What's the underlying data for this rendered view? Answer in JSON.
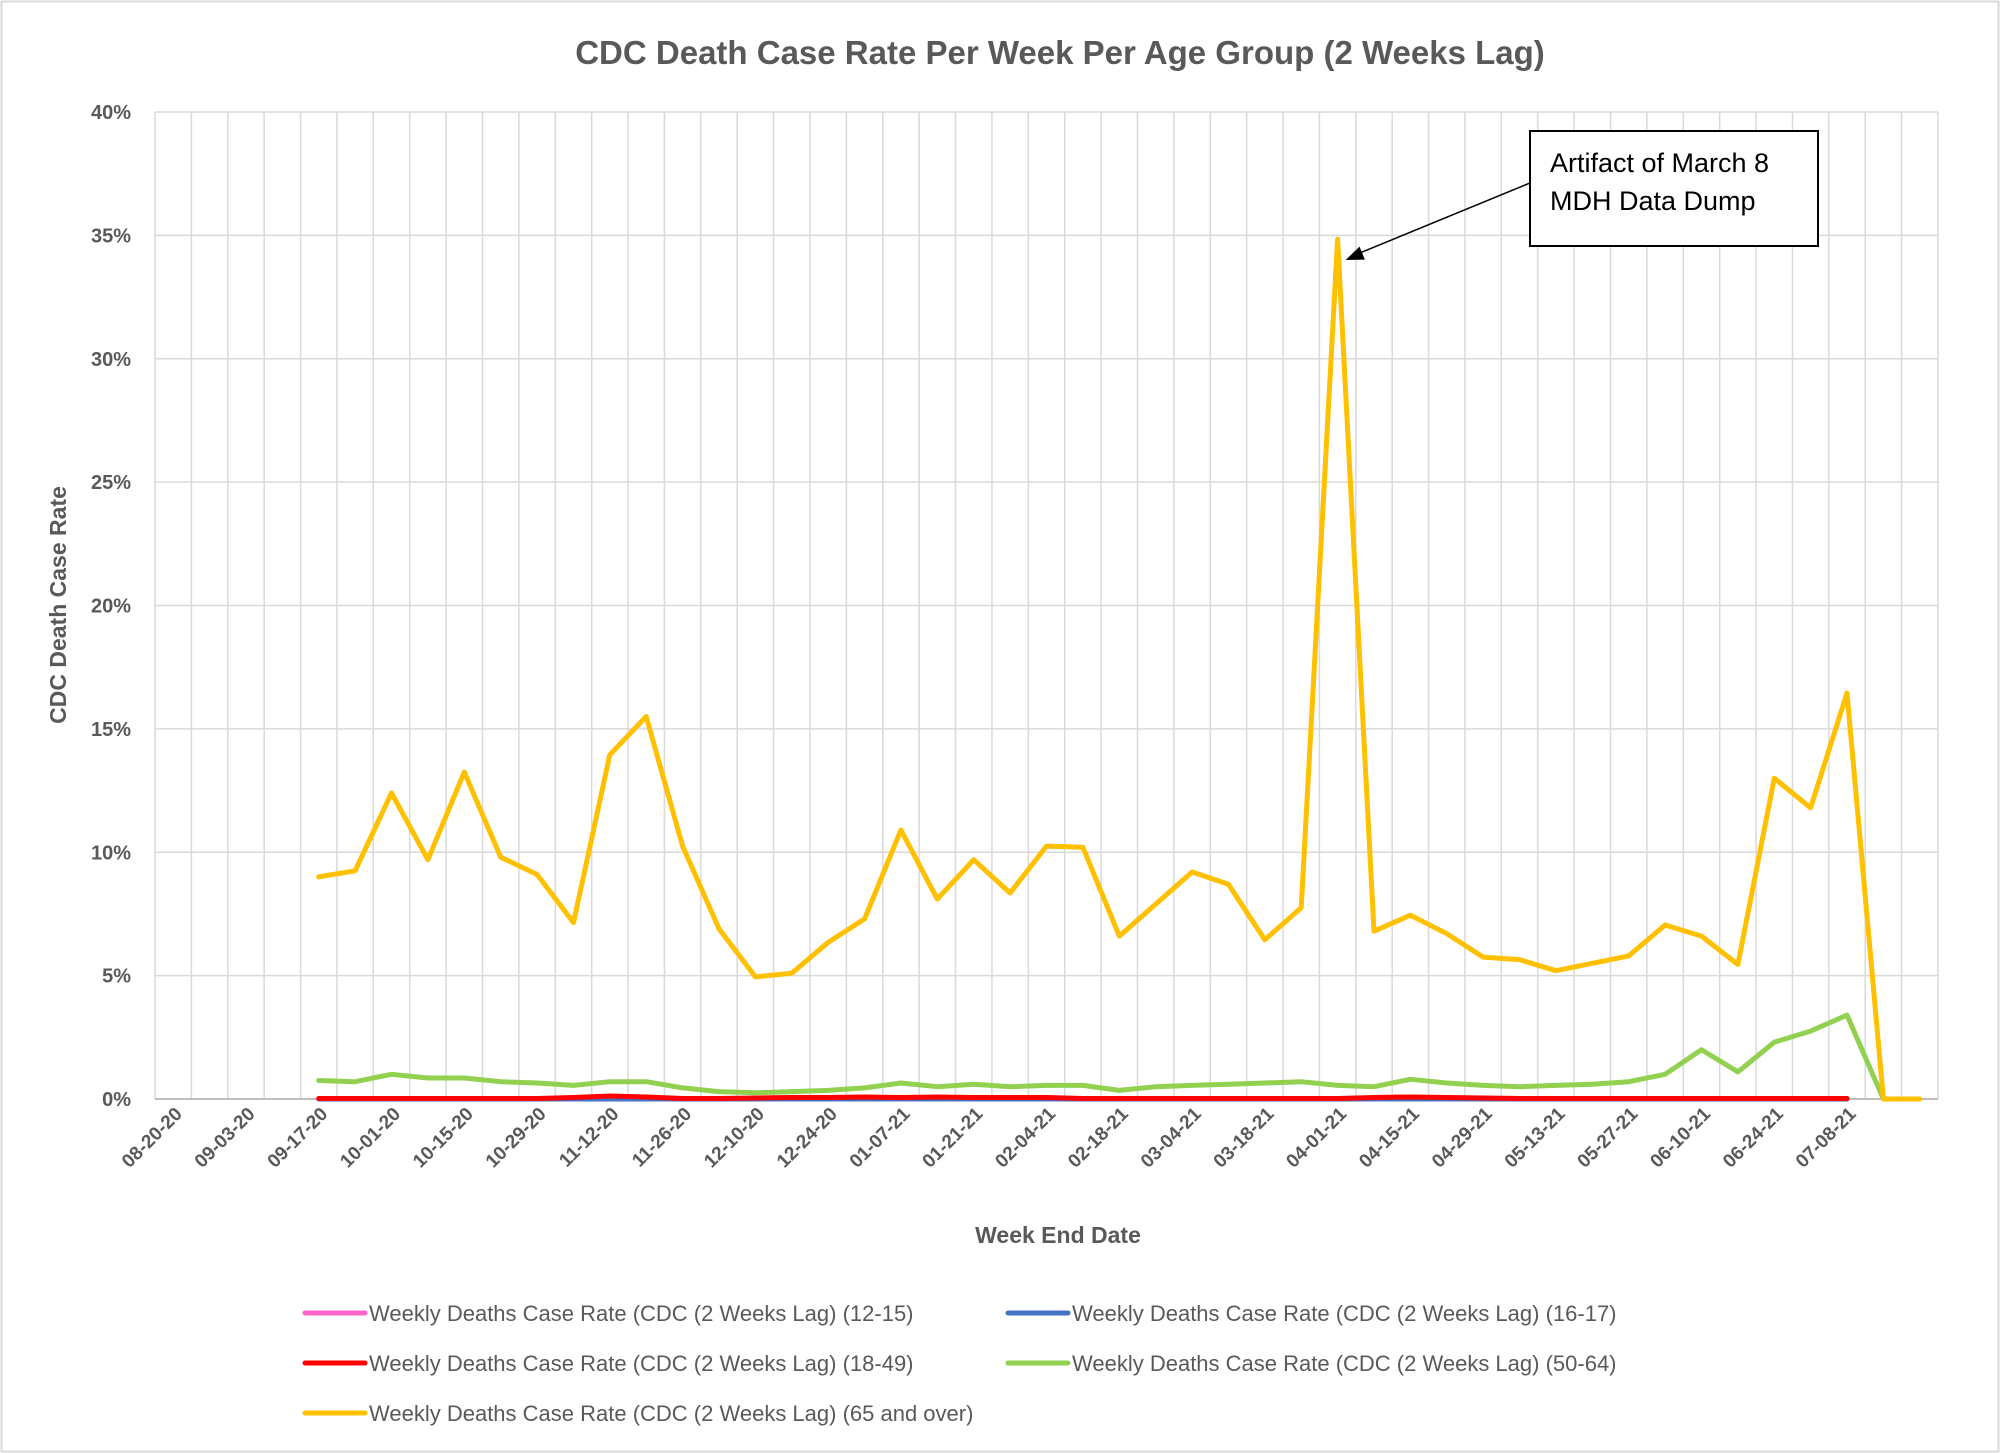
{
  "chart_data": {
    "type": "line",
    "title": "CDC Death Case Rate Per Week Per Age Group (2 Weeks Lag)",
    "xlabel": "Week End Date",
    "ylabel": "CDC Death Case Rate",
    "ylim": [
      0,
      40
    ],
    "y_ticks": [
      "0%",
      "5%",
      "10%",
      "15%",
      "20%",
      "25%",
      "30%",
      "35%",
      "40%"
    ],
    "x_tick_labels": [
      "08-20-20",
      "09-03-20",
      "09-17-20",
      "10-01-20",
      "10-15-20",
      "10-29-20",
      "11-12-20",
      "11-26-20",
      "12-10-20",
      "12-24-20",
      "01-07-21",
      "01-21-21",
      "02-04-21",
      "02-18-21",
      "03-04-21",
      "03-18-21",
      "04-01-21",
      "04-15-21",
      "04-29-21",
      "05-13-21",
      "05-27-21",
      "06-10-21",
      "06-24-21",
      "07-08-21"
    ],
    "x": [
      "08-20-20",
      "08-27-20",
      "09-03-20",
      "09-10-20",
      "09-17-20",
      "09-24-20",
      "10-01-20",
      "10-08-20",
      "10-15-20",
      "10-22-20",
      "10-29-20",
      "11-05-20",
      "11-12-20",
      "11-19-20",
      "11-26-20",
      "12-03-20",
      "12-10-20",
      "12-17-20",
      "12-24-20",
      "12-31-20",
      "01-07-21",
      "01-14-21",
      "01-21-21",
      "01-28-21",
      "02-04-21",
      "02-11-21",
      "02-18-21",
      "02-25-21",
      "03-04-21",
      "03-11-21",
      "03-18-21",
      "03-25-21",
      "04-01-21",
      "04-08-21",
      "04-15-21",
      "04-22-21",
      "04-29-21",
      "05-06-21",
      "05-13-21",
      "05-20-21",
      "05-27-21",
      "06-03-21",
      "06-10-21",
      "06-17-21",
      "06-24-21",
      "07-01-21",
      "07-08-21",
      "07-15-21"
    ],
    "grid": true,
    "legend_position": "bottom",
    "series": [
      {
        "name": "Weekly Deaths Case Rate (CDC (2 Weeks Lag) (12-15)",
        "color": "#ff66cc",
        "values": [
          null,
          null,
          null,
          null,
          0,
          0,
          0,
          0,
          0,
          0,
          0,
          0,
          0,
          0,
          0,
          0,
          0,
          0,
          0,
          0,
          0,
          0,
          0,
          0,
          0,
          0,
          0,
          0,
          0,
          0,
          0,
          0,
          0,
          0,
          0,
          0,
          0,
          0,
          0,
          0,
          0,
          0,
          0,
          0,
          0,
          0,
          0,
          null
        ]
      },
      {
        "name": "Weekly Deaths Case Rate (CDC (2 Weeks Lag) (16-17)",
        "color": "#4472c4",
        "values": [
          null,
          null,
          null,
          null,
          0,
          0,
          0,
          0,
          0,
          0,
          0,
          0,
          0,
          0,
          0,
          0,
          0,
          0,
          0,
          0,
          0,
          0,
          0,
          0,
          0,
          0,
          0,
          0,
          0,
          0,
          0,
          0,
          0,
          0,
          0,
          0,
          0,
          0,
          0,
          0,
          0,
          0,
          0,
          0,
          0,
          0,
          0,
          null
        ]
      },
      {
        "name": "Weekly Deaths Case Rate (CDC (2 Weeks Lag) (18-49)",
        "color": "#ff0000",
        "values": [
          null,
          null,
          null,
          null,
          0.02,
          0.02,
          0.02,
          0.02,
          0.02,
          0.02,
          0.02,
          0.06,
          0.12,
          0.08,
          0.02,
          0.02,
          0.04,
          0.06,
          0.06,
          0.08,
          0.06,
          0.08,
          0.06,
          0.06,
          0.06,
          0.02,
          0.02,
          0.02,
          0.02,
          0.02,
          0.02,
          0.02,
          0.02,
          0.06,
          0.08,
          0.06,
          0.04,
          0.02,
          0.02,
          0.02,
          0.02,
          0.02,
          0.02,
          0.02,
          0.02,
          0.02,
          0.02,
          null
        ]
      },
      {
        "name": "Weekly Deaths Case Rate (CDC (2 Weeks Lag) (50-64)",
        "color": "#92d050",
        "values": [
          null,
          null,
          null,
          null,
          0.75,
          0.7,
          1.0,
          0.85,
          0.85,
          0.7,
          0.65,
          0.55,
          0.7,
          0.7,
          0.45,
          0.3,
          0.25,
          0.3,
          0.35,
          0.45,
          0.65,
          0.5,
          0.6,
          0.5,
          0.55,
          0.55,
          0.35,
          0.5,
          0.55,
          0.6,
          0.65,
          0.7,
          0.55,
          0.5,
          0.8,
          0.65,
          0.55,
          0.5,
          0.55,
          0.6,
          0.7,
          1.0,
          2.0,
          1.1,
          2.3,
          2.75,
          3.4,
          0
        ]
      },
      {
        "name": "Weekly Deaths Case Rate (CDC (2 Weeks Lag) (65 and over)",
        "color": "#ffc000",
        "values": [
          null,
          null,
          null,
          null,
          9.0,
          9.25,
          12.4,
          9.7,
          13.25,
          9.8,
          9.1,
          7.15,
          13.95,
          15.5,
          10.25,
          6.9,
          4.95,
          5.1,
          6.35,
          7.3,
          10.9,
          8.1,
          9.7,
          8.35,
          10.25,
          10.2,
          6.6,
          7.9,
          9.2,
          8.7,
          6.45,
          7.75,
          34.85,
          6.8,
          7.45,
          6.7,
          5.75,
          5.65,
          5.2,
          5.5,
          5.8,
          7.05,
          6.6,
          5.45,
          13.0,
          11.8,
          16.45,
          0
        ]
      }
    ],
    "annotations": [
      {
        "lines": [
          "Artifact of March 8",
          "MDH Data Dump"
        ],
        "points_to_x": "04-01-21",
        "points_to_value": 34.0
      }
    ],
    "trailing_segment": {
      "from_x": "07-15-21",
      "to_x": "07-22-21",
      "value": 0
    }
  }
}
